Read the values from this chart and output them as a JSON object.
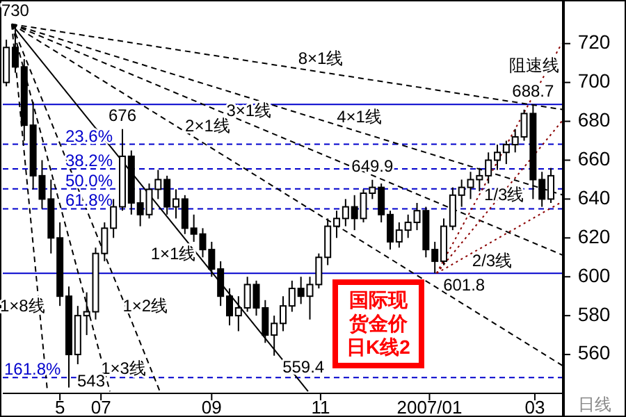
{
  "chart_data": {
    "type": "candlestick",
    "title": "国际现货金价日K线2",
    "xlim": [
      "2006-05-07",
      "2007-03-17"
    ],
    "ylim": [
      540,
      741
    ],
    "xticks": [
      {
        "value": "2006-06-08",
        "label": "5"
      },
      {
        "value": "2006-07-01",
        "label": "07"
      },
      {
        "value": "2006-09-01",
        "label": "09"
      },
      {
        "value": "2006-11-01",
        "label": "11"
      },
      {
        "value": "2007-01-01",
        "label": "2007/01"
      },
      {
        "value": "2007-03-01",
        "label": "03"
      }
    ],
    "yticks": [
      560,
      580,
      600,
      620,
      640,
      660,
      680,
      700,
      720
    ],
    "series": [
      {
        "color": "#000000",
        "x": [
          "2006-05-09",
          "2006-05-14",
          "2006-05-19",
          "2006-05-24",
          "2006-05-29",
          "2006-06-03",
          "2006-06-08",
          "2006-06-13",
          "2006-06-18",
          "2006-06-23",
          "2006-06-28",
          "2006-07-03",
          "2006-07-08",
          "2006-07-13",
          "2006-07-18",
          "2006-07-23",
          "2006-07-28",
          "2006-08-02",
          "2006-08-07",
          "2006-08-12",
          "2006-08-17",
          "2006-08-22",
          "2006-08-27",
          "2006-09-01",
          "2006-09-06",
          "2006-09-11",
          "2006-09-16",
          "2006-09-21",
          "2006-09-26",
          "2006-10-01",
          "2006-10-06",
          "2006-10-11",
          "2006-10-16",
          "2006-10-21",
          "2006-10-26",
          "2006-10-31",
          "2006-11-05",
          "2006-11-10",
          "2006-11-15",
          "2006-11-20",
          "2006-11-25",
          "2006-11-30",
          "2006-12-05",
          "2006-12-10",
          "2006-12-15",
          "2006-12-20",
          "2006-12-25",
          "2006-12-30",
          "2007-01-04",
          "2007-01-09",
          "2007-01-14",
          "2007-01-19",
          "2007-01-24",
          "2007-01-29",
          "2007-02-03",
          "2007-02-08",
          "2007-02-13",
          "2007-02-18",
          "2007-02-23",
          "2007-02-28",
          "2007-03-05",
          "2007-03-10"
        ],
        "ohlc": [
          [
            700,
            722,
            698,
            718
          ],
          [
            718,
            730,
            705,
            708
          ],
          [
            708,
            712,
            670,
            678
          ],
          [
            678,
            690,
            645,
            652
          ],
          [
            652,
            660,
            635,
            640
          ],
          [
            640,
            650,
            612,
            620
          ],
          [
            620,
            628,
            585,
            590
          ],
          [
            590,
            595,
            543,
            560
          ],
          [
            560,
            585,
            555,
            580
          ],
          [
            580,
            592,
            570,
            582
          ],
          [
            582,
            615,
            578,
            612
          ],
          [
            612,
            628,
            608,
            625
          ],
          [
            625,
            640,
            620,
            636
          ],
          [
            636,
            676,
            634,
            662
          ],
          [
            662,
            665,
            632,
            638
          ],
          [
            638,
            645,
            626,
            632
          ],
          [
            632,
            648,
            630,
            645
          ],
          [
            645,
            655,
            640,
            650
          ],
          [
            650,
            652,
            632,
            636
          ],
          [
            636,
            645,
            630,
            640
          ],
          [
            640,
            642,
            622,
            625
          ],
          [
            625,
            632,
            618,
            622
          ],
          [
            622,
            625,
            610,
            614
          ],
          [
            614,
            618,
            600,
            604
          ],
          [
            604,
            608,
            585,
            590
          ],
          [
            590,
            594,
            575,
            580
          ],
          [
            580,
            590,
            572,
            584
          ],
          [
            584,
            600,
            582,
            596
          ],
          [
            596,
            598,
            580,
            584
          ],
          [
            584,
            588,
            566,
            570
          ],
          [
            570,
            580,
            559.4,
            576
          ],
          [
            576,
            590,
            572,
            585
          ],
          [
            585,
            598,
            582,
            594
          ],
          [
            594,
            600,
            586,
            590
          ],
          [
            590,
            600,
            578,
            596
          ],
          [
            596,
            612,
            594,
            610
          ],
          [
            610,
            630,
            606,
            626
          ],
          [
            626,
            634,
            620,
            630
          ],
          [
            630,
            640,
            626,
            636
          ],
          [
            636,
            642,
            624,
            630
          ],
          [
            630,
            645,
            628,
            643
          ],
          [
            643,
            649.9,
            640,
            646
          ],
          [
            646,
            648,
            628,
            632
          ],
          [
            632,
            634,
            614,
            618
          ],
          [
            618,
            628,
            615,
            624
          ],
          [
            624,
            632,
            620,
            628
          ],
          [
            628,
            638,
            624,
            634
          ],
          [
            634,
            636,
            610,
            614
          ],
          [
            614,
            618,
            601.8,
            608
          ],
          [
            608,
            630,
            606,
            626
          ],
          [
            626,
            646,
            624,
            642
          ],
          [
            642,
            650,
            636,
            646
          ],
          [
            646,
            654,
            640,
            650
          ],
          [
            650,
            656,
            644,
            652
          ],
          [
            652,
            664,
            648,
            660
          ],
          [
            660,
            668,
            655,
            664
          ],
          [
            664,
            670,
            658,
            668
          ],
          [
            668,
            676,
            664,
            672
          ],
          [
            672,
            686,
            670,
            684
          ],
          [
            684,
            688.7,
            640,
            650
          ],
          [
            650,
            654,
            636,
            640
          ],
          [
            640,
            656,
            638,
            652
          ]
        ]
      },
      {
        "type": "line",
        "name": "8×1线",
        "color": "#000000",
        "line_style": "dashed",
        "x": [
          "2006-05-12",
          "2007-03-17"
        ],
        "values": [
          730,
          686
        ]
      },
      {
        "type": "line",
        "name": "4×1线",
        "color": "#000000",
        "line_style": "dashed",
        "x": [
          "2006-05-12",
          "2007-03-17"
        ],
        "values": [
          730,
          642
        ]
      },
      {
        "type": "line",
        "name": "3×1线",
        "color": "#000000",
        "line_style": "dashed",
        "x": [
          "2006-05-12",
          "2007-03-17"
        ],
        "values": [
          730,
          611
        ]
      },
      {
        "type": "line",
        "name": "2×1线",
        "color": "#000000",
        "line_style": "dashed",
        "x": [
          "2006-05-12",
          "2007-03-17"
        ],
        "values": [
          730,
          554
        ]
      },
      {
        "type": "line",
        "name": "1×1线",
        "color": "#000000",
        "line_style": "solid",
        "x": [
          "2006-05-12",
          "2006-10-25"
        ],
        "values": [
          730,
          541
        ]
      },
      {
        "type": "line",
        "name": "1×2线",
        "color": "#000000",
        "line_style": "dashed",
        "x": [
          "2006-05-12",
          "2006-08-03"
        ],
        "values": [
          730,
          541
        ]
      },
      {
        "type": "line",
        "name": "1×3线",
        "color": "#000000",
        "line_style": "dashed",
        "x": [
          "2006-05-12",
          "2006-07-06"
        ],
        "values": [
          730,
          541
        ]
      },
      {
        "type": "line",
        "name": "1×8线",
        "color": "#000000",
        "line_style": "dashed",
        "x": [
          "2006-05-12",
          "2006-06-01"
        ],
        "values": [
          730,
          541
        ]
      },
      {
        "type": "line",
        "name": "阻速线",
        "color": "#8b0000",
        "line_style": "dotted",
        "x": [
          "2007-01-05",
          "2007-03-16"
        ],
        "values": [
          601.8,
          720
        ]
      },
      {
        "type": "line",
        "name": "1/3线",
        "color": "#8b0000",
        "line_style": "dotted",
        "x": [
          "2007-01-05",
          "2007-03-17"
        ],
        "values": [
          601.8,
          681
        ]
      },
      {
        "type": "line",
        "name": "2/3线",
        "color": "#8b0000",
        "line_style": "dotted",
        "x": [
          "2007-01-05",
          "2007-03-17"
        ],
        "values": [
          601.8,
          639
        ]
      }
    ],
    "ref_lines": [
      {
        "axis": "y",
        "value": 688.7,
        "color": "#0000cc",
        "line_style": "solid"
      },
      {
        "axis": "y",
        "value": 601.8,
        "color": "#0000cc",
        "line_style": "solid"
      },
      {
        "axis": "y",
        "value": 668.2,
        "color": "#0000cc",
        "line_style": "dashed"
      },
      {
        "axis": "y",
        "value": 655.5,
        "color": "#0000cc",
        "line_style": "dashed"
      },
      {
        "axis": "y",
        "value": 645.25,
        "color": "#0000cc",
        "line_style": "dashed"
      },
      {
        "axis": "y",
        "value": 635,
        "color": "#0000cc",
        "line_style": "dashed"
      },
      {
        "axis": "y",
        "value": 548.1,
        "color": "#0000cc",
        "line_style": "dashed"
      }
    ],
    "annotations": [
      {
        "text": "730",
        "x": "2006-05-14",
        "y": 730
      },
      {
        "text": "676",
        "x": "2006-07-13",
        "y": 676
      },
      {
        "text": "543",
        "x": "2006-06-13",
        "y": 543
      },
      {
        "text": "559.4",
        "x": "2006-10-06",
        "y": 559.4
      },
      {
        "text": "649.9",
        "x": "2006-11-30",
        "y": 649.9
      },
      {
        "text": "601.8",
        "x": "2007-01-04",
        "y": 601.8
      },
      {
        "text": "688.7",
        "x": "2007-02-28",
        "y": 688.7
      },
      {
        "text": "23.6%",
        "y": 668.2
      },
      {
        "text": "38.2%",
        "y": 655.5
      },
      {
        "text": "50.0%",
        "y": 645.25
      },
      {
        "text": "61.8%",
        "y": 635
      },
      {
        "text": "161.8%",
        "y": 548.1
      },
      "日线"
    ]
  }
}
